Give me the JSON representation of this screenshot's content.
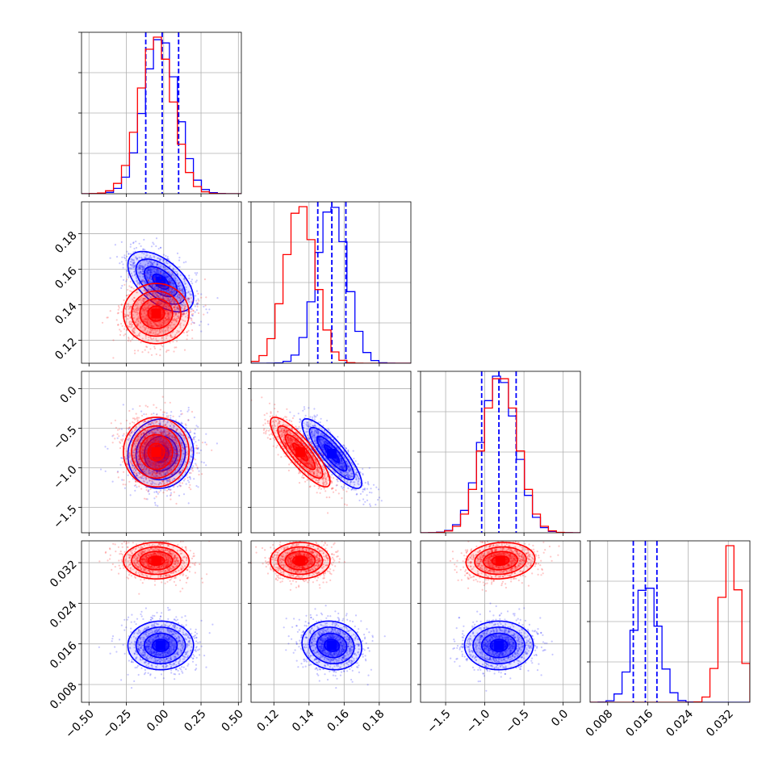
{
  "colors": {
    "series_a": "#0000ff",
    "series_b": "#ff0000",
    "grid": "#b0b0b0"
  },
  "chart_data": {
    "type": "corner",
    "layout": "lower-triangle 4x4",
    "grid": true,
    "xlabel": "",
    "ylabel": "",
    "parameters": [
      {
        "range": [
          -0.55,
          0.52
        ],
        "ticks": [
          -0.5,
          -0.25,
          0.0,
          0.25,
          0.5
        ],
        "tick_labels": [
          "−0.50",
          "−0.25",
          "0.00",
          "0.25",
          "0.50"
        ]
      },
      {
        "range": [
          0.107,
          0.198
        ],
        "ticks": [
          0.12,
          0.14,
          0.16,
          0.18
        ],
        "tick_labels": [
          "0.12",
          "0.14",
          "0.16",
          "0.18"
        ]
      },
      {
        "range": [
          -1.82,
          0.22
        ],
        "ticks": [
          -1.5,
          -1.0,
          -0.5,
          0.0
        ],
        "tick_labels": [
          "−1.5",
          "−1.0",
          "−0.5",
          "0.0"
        ]
      },
      {
        "range": [
          0.0045,
          0.0363
        ],
        "ticks": [
          0.008,
          0.016,
          0.024,
          0.032
        ],
        "tick_labels": [
          "0.008",
          "0.016",
          "0.024",
          "0.032"
        ]
      }
    ],
    "series": [
      {
        "name": "",
        "color": "#0000ff",
        "mean": [
          -0.02,
          0.153,
          -0.82,
          0.0157
        ],
        "std": [
          0.11,
          0.0085,
          0.22,
          0.0024
        ],
        "corr": [
          [
            0,
            1,
            -0.55
          ],
          [
            0,
            2,
            0.05
          ],
          [
            1,
            2,
            -0.85
          ],
          [
            0,
            3,
            0.0
          ],
          [
            1,
            3,
            -0.1
          ],
          [
            2,
            3,
            0.0
          ]
        ],
        "quantiles_16_50_84": [
          [
            -0.12,
            -0.01,
            0.1
          ],
          [
            0.145,
            0.153,
            0.161
          ],
          [
            -1.04,
            -0.82,
            -0.6
          ],
          [
            0.0131,
            0.0155,
            0.0178
          ]
        ]
      },
      {
        "name": "",
        "color": "#ff0000",
        "mean": [
          -0.05,
          0.135,
          -0.8,
          0.0324
        ],
        "std": [
          0.11,
          0.0085,
          0.22,
          0.0018
        ],
        "corr": [
          [
            0,
            1,
            0.0
          ],
          [
            0,
            2,
            0.0
          ],
          [
            1,
            2,
            -0.85
          ],
          [
            0,
            3,
            0.0
          ],
          [
            1,
            3,
            0.0
          ],
          [
            2,
            3,
            0.1
          ]
        ],
        "quantiles_16_50_84": []
      }
    ]
  }
}
